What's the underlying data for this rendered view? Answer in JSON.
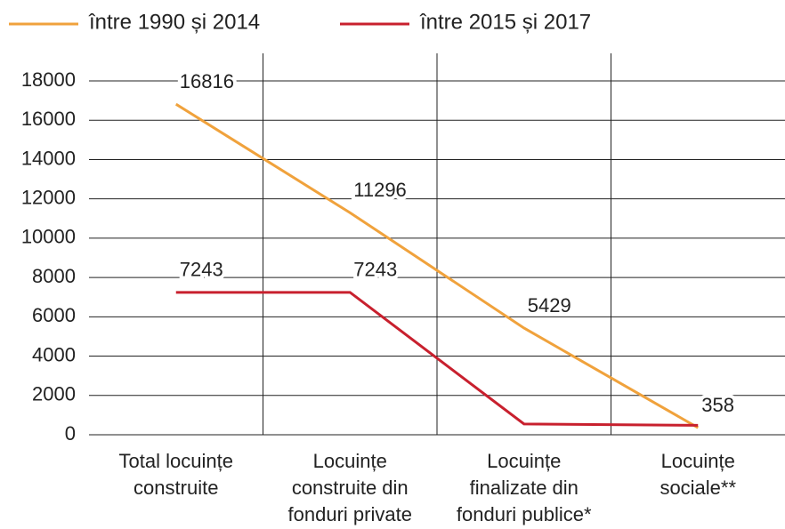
{
  "chart_data": {
    "type": "line",
    "categories": [
      [
        "Total locuințe",
        "construite"
      ],
      [
        "Locuințe",
        "construite din",
        "fonduri private"
      ],
      [
        "Locuințe",
        "finalizate din",
        "fonduri publice*"
      ],
      [
        "Locuințe",
        "sociale**"
      ]
    ],
    "series": [
      {
        "name": "între 1990 și 2014",
        "color": "#f0a23c",
        "values": [
          16816,
          11296,
          5429,
          358
        ],
        "value_labels": [
          "16816",
          "11296",
          "5429",
          "358"
        ]
      },
      {
        "name": "între 2015 și 2017",
        "color": "#c8202e",
        "values": [
          7243,
          7243,
          550,
          480
        ],
        "value_labels": [
          "7243",
          "7243",
          null,
          null
        ]
      }
    ],
    "ylim": [
      0,
      18000
    ],
    "yticks": [
      0,
      2000,
      4000,
      6000,
      8000,
      10000,
      12000,
      14000,
      16000,
      18000
    ],
    "grid": true
  }
}
